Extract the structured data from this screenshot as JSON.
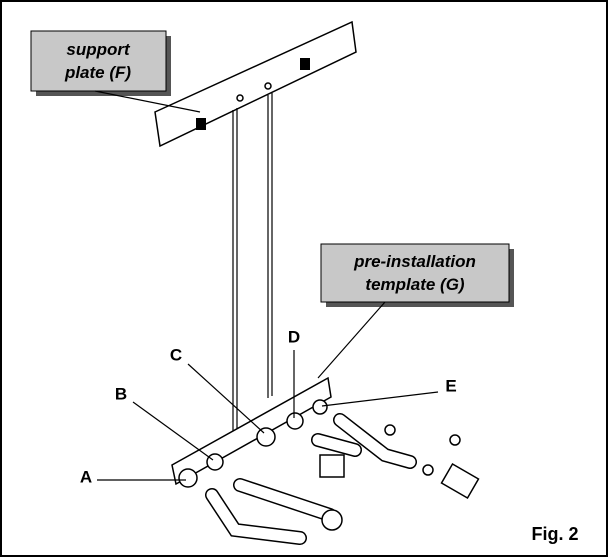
{
  "callouts": [
    {
      "lines": [
        "support",
        "plate (F)"
      ]
    },
    {
      "lines": [
        "pre-installation",
        "template (G)"
      ]
    }
  ],
  "labels": [
    "A",
    "B",
    "C",
    "D",
    "E"
  ],
  "figure": "Fig. 2"
}
